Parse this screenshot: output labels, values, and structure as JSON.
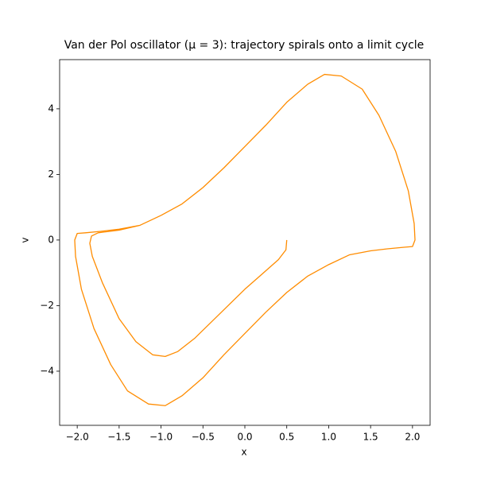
{
  "chart_data": {
    "type": "line",
    "title": "Van der Pol oscillator (μ = 3): trajectory spirals onto a limit cycle",
    "x_label": "x",
    "y_label": "v",
    "xlim": [
      -2.21,
      2.21
    ],
    "ylim": [
      -5.65,
      5.5
    ],
    "xticks": [
      {
        "value": -2,
        "label": "−2.0"
      },
      {
        "value": -1.5,
        "label": "−1.5"
      },
      {
        "value": -1,
        "label": "−1.0"
      },
      {
        "value": -0.5,
        "label": "−0.5"
      },
      {
        "value": 0,
        "label": "0.0"
      },
      0.5,
      {
        "value": 1,
        "label": "1.0"
      },
      1.5,
      {
        "value": 2,
        "label": "2.0"
      }
    ],
    "yticks": [
      {
        "value": -4,
        "label": "−4"
      },
      {
        "value": -2,
        "label": "−2"
      },
      0,
      2,
      4
    ],
    "grid": false,
    "series": [
      {
        "color": "#ff8c00",
        "x": [
          0.5,
          0.49,
          0.4,
          0.2,
          0,
          -0.2,
          -0.4,
          -0.6,
          -0.8,
          -0.95,
          -1.1,
          -1.3,
          -1.5,
          -1.7,
          -1.82,
          -1.85,
          -1.83,
          -1.75,
          -1.5,
          -1.25,
          -1.0,
          -0.75,
          -0.5,
          -0.25,
          0,
          0.25,
          0.5,
          0.75,
          0.95,
          1.15,
          1.4,
          1.6,
          1.8,
          1.95,
          2.02,
          2.03,
          2.0,
          1.9,
          1.7,
          1.5,
          1.25,
          1.0,
          0.75,
          0.5,
          0.25,
          0,
          -0.25,
          -0.5,
          -0.75,
          -0.95,
          -1.15,
          -1.4,
          -1.6,
          -1.8,
          -1.95,
          -2.02,
          -2.03,
          -2.0,
          -1.9,
          -1.7,
          -1.5,
          -1.25
        ],
        "values": [
          0,
          -0.3,
          -0.6,
          -1.05,
          -1.5,
          -2.0,
          -2.5,
          -3.0,
          -3.4,
          -3.55,
          -3.5,
          -3.1,
          -2.4,
          -1.3,
          -0.5,
          -0.1,
          0.12,
          0.22,
          0.3,
          0.45,
          0.75,
          1.1,
          1.6,
          2.2,
          2.85,
          3.5,
          4.2,
          4.75,
          5.05,
          5.0,
          4.6,
          3.8,
          2.7,
          1.5,
          0.5,
          0,
          -0.2,
          -0.22,
          -0.27,
          -0.33,
          -0.45,
          -0.75,
          -1.1,
          -1.6,
          -2.2,
          -2.85,
          -3.5,
          -4.2,
          -4.75,
          -5.05,
          -5.0,
          -4.6,
          -3.8,
          -2.7,
          -1.5,
          -0.5,
          0,
          0.2,
          0.22,
          0.27,
          0.33,
          0.45
        ]
      }
    ]
  }
}
